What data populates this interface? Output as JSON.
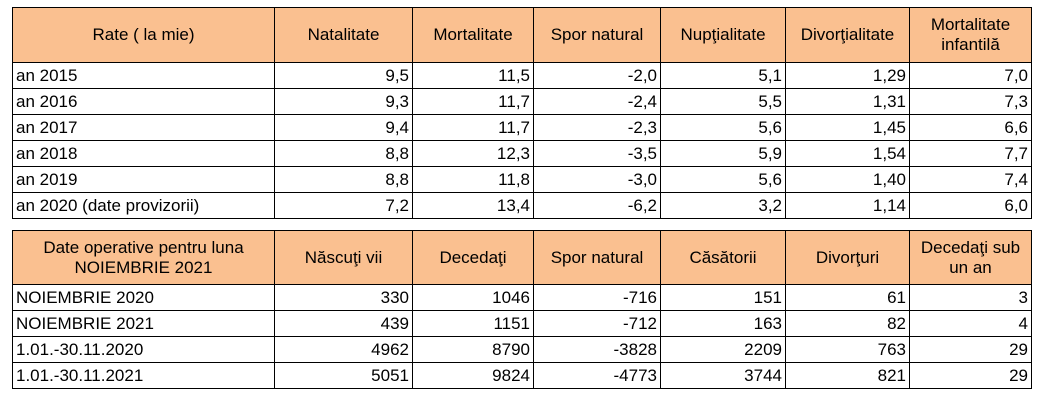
{
  "table_rates": {
    "headers": [
      "Rate ( la mie)",
      "Natalitate",
      "Mortalitate",
      "Spor natural",
      "Nupţialitate",
      "Divorţialitate",
      "Mortalitate infantilă"
    ],
    "rows": [
      [
        "an 2015",
        "9,5",
        "11,5",
        "-2,0",
        "5,1",
        "1,29",
        "7,0"
      ],
      [
        "an 2016",
        "9,3",
        "11,7",
        "-2,4",
        "5,5",
        "1,31",
        "7,3"
      ],
      [
        "an 2017",
        "9,4",
        "11,7",
        "-2,3",
        "5,6",
        "1,45",
        "6,6"
      ],
      [
        "an 2018",
        "8,8",
        "12,3",
        "-3,5",
        "5,9",
        "1,54",
        "7,7"
      ],
      [
        "an 2019",
        "8,8",
        "11,8",
        "-3,0",
        "5,6",
        "1,40",
        "7,4"
      ],
      [
        "an 2020 (date provizorii)",
        "7,2",
        "13,4",
        "-6,2",
        "3,2",
        "1,14",
        "6,0"
      ]
    ]
  },
  "table_operative": {
    "headers": [
      "Date operative pentru luna NOIEMBRIE 2021",
      "Născuţi vii",
      "Decedaţi",
      "Spor natural",
      "Căsătorii",
      "Divorţuri",
      "Decedaţi sub un an"
    ],
    "rows": [
      [
        "NOIEMBRIE 2020",
        "330",
        "1046",
        "-716",
        "151",
        "61",
        "3"
      ],
      [
        "NOIEMBRIE 2021",
        "439",
        "1151",
        "-712",
        "163",
        "82",
        "4"
      ],
      [
        "1.01.-30.11.2020",
        "4962",
        "8790",
        "-3828",
        "2209",
        "763",
        "29"
      ],
      [
        "1.01.-30.11.2021",
        "5051",
        "9824",
        "-4773",
        "3744",
        "821",
        "29"
      ]
    ]
  },
  "colors": {
    "header_background": "#fac090",
    "border": "#000000"
  }
}
